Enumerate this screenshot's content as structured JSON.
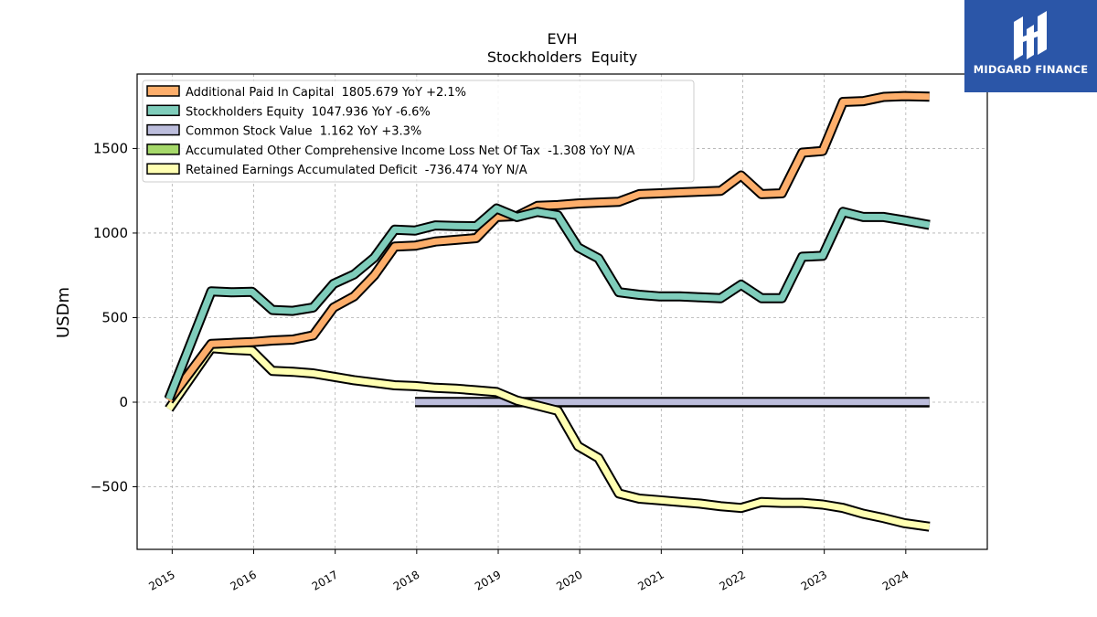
{
  "brand": {
    "name": "MIDGARD FINANCE",
    "icon": "midgard-logo-icon",
    "color": "#2b56a8"
  },
  "chart_data": {
    "type": "line",
    "title": "EVH",
    "subtitle": "Stockholders  Equity",
    "ylabel": "USDm",
    "xlabel": "",
    "ylim": [
      -870,
      1940
    ],
    "xlim": [
      2014.57,
      2025.0
    ],
    "yticks": [
      -500,
      0,
      500,
      1000,
      1500
    ],
    "ytick_labels": [
      "−500",
      "0",
      "500",
      "1000",
      "1500"
    ],
    "xticks": [
      2015,
      2016,
      2017,
      2018,
      2019,
      2020,
      2021,
      2022,
      2023,
      2024
    ],
    "xtick_labels": [
      "2015",
      "2016",
      "2017",
      "2018",
      "2019",
      "2020",
      "2021",
      "2022",
      "2023",
      "2024"
    ],
    "grid": true,
    "legend_position": "top-left",
    "series": [
      {
        "name": "Additional Paid In Capital  1805.679 YoY +2.1%",
        "color": "#fdae6b",
        "x": [
          2014.96,
          2015.48,
          2015.73,
          2015.98,
          2016.23,
          2016.48,
          2016.73,
          2016.98,
          2017.23,
          2017.48,
          2017.73,
          2017.98,
          2018.23,
          2018.48,
          2018.73,
          2018.98,
          2019.23,
          2019.48,
          2019.73,
          2019.98,
          2020.23,
          2020.48,
          2020.73,
          2020.98,
          2021.23,
          2021.48,
          2021.73,
          2021.98,
          2022.23,
          2022.48,
          2022.73,
          2022.98,
          2023.23,
          2023.48,
          2023.73,
          2023.98,
          2024.29
        ],
        "values": [
          10,
          345,
          350,
          355,
          365,
          370,
          395,
          560,
          625,
          750,
          920,
          925,
          950,
          960,
          970,
          1095,
          1100,
          1160,
          1165,
          1175,
          1180,
          1185,
          1230,
          1235,
          1240,
          1245,
          1250,
          1340,
          1230,
          1235,
          1475,
          1485,
          1775,
          1780,
          1805,
          1810,
          1806
        ]
      },
      {
        "name": "Stockholders Equity  1047.936 YoY -6.6%",
        "color": "#7fcdbb",
        "x": [
          2014.96,
          2015.48,
          2015.73,
          2015.98,
          2016.23,
          2016.48,
          2016.73,
          2016.98,
          2017.23,
          2017.48,
          2017.73,
          2017.98,
          2018.23,
          2018.48,
          2018.73,
          2018.98,
          2019.23,
          2019.48,
          2019.73,
          2019.98,
          2020.23,
          2020.48,
          2020.73,
          2020.98,
          2021.23,
          2021.48,
          2021.73,
          2021.98,
          2022.23,
          2022.48,
          2022.73,
          2022.98,
          2023.23,
          2023.48,
          2023.73,
          2023.98,
          2024.29
        ],
        "values": [
          20,
          655,
          650,
          652,
          545,
          540,
          560,
          700,
          755,
          855,
          1020,
          1015,
          1045,
          1042,
          1040,
          1145,
          1095,
          1125,
          1105,
          915,
          850,
          650,
          635,
          625,
          625,
          620,
          615,
          695,
          615,
          615,
          860,
          865,
          1125,
          1095,
          1095,
          1075,
          1048
        ]
      },
      {
        "name": "Common Stock Value  1.162 YoY +3.3%",
        "color": "#bcbddc",
        "x": [
          2017.98,
          2024.29
        ],
        "values": [
          1.1,
          1.162
        ]
      },
      {
        "name": "Accumulated Other Comprehensive Income Loss Net Of Tax  -1.308 YoY N/A",
        "color": "#a6d96a",
        "x": [
          2017.98,
          2024.29
        ],
        "values": [
          0,
          -1.308
        ]
      },
      {
        "name": "Retained Earnings Accumulated Deficit  -736.474 YoY N/A",
        "color": "#ffffb2",
        "x": [
          2014.96,
          2015.48,
          2015.73,
          2015.98,
          2016.23,
          2016.48,
          2016.73,
          2016.98,
          2017.23,
          2017.48,
          2017.73,
          2017.98,
          2018.23,
          2018.48,
          2018.73,
          2018.98,
          2019.23,
          2019.48,
          2019.73,
          2019.98,
          2020.23,
          2020.48,
          2020.73,
          2020.98,
          2021.23,
          2021.48,
          2021.73,
          2021.98,
          2022.23,
          2022.48,
          2022.73,
          2022.98,
          2023.23,
          2023.48,
          2023.73,
          2023.98,
          2024.29
        ],
        "values": [
          -40,
          320,
          310,
          305,
          185,
          180,
          170,
          150,
          130,
          115,
          100,
          95,
          85,
          80,
          70,
          60,
          10,
          -20,
          -50,
          -260,
          -330,
          -540,
          -570,
          -580,
          -590,
          -600,
          -615,
          -625,
          -590,
          -595,
          -595,
          -605,
          -625,
          -660,
          -685,
          -715,
          -736
        ]
      }
    ]
  }
}
